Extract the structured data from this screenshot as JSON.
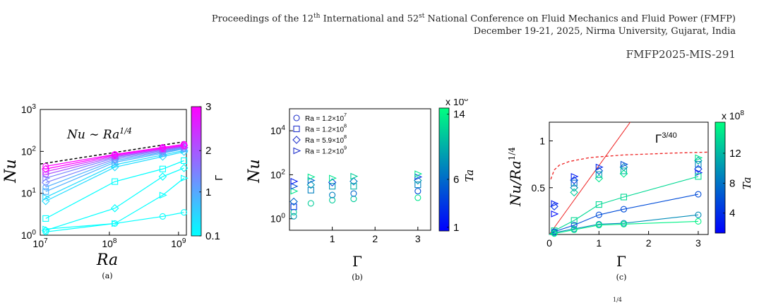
{
  "header": {
    "line1_pre": "Proceedings of the 12",
    "line1_sup1": "th",
    "line1_mid": " International and 52",
    "line1_sup2": "st",
    "line1_post": " National Conference on Fluid Mechanics and Fluid Power (FMFP)",
    "line2": "December 19-21, 2025, Nirma University, Gujarat, India",
    "paper_id": "FMFP2025-MIS-291"
  },
  "bottom_fragment": "1/4",
  "chart_data": [
    {
      "type": "line",
      "panel_label": "(a)",
      "xlabel": "Ra",
      "ylabel": "Nu",
      "xscale": "log",
      "yscale": "log",
      "xlim": [
        10000000.0,
        1300000000.0
      ],
      "ylim": [
        1,
        1000
      ],
      "xticks": [
        "10^7",
        "10^8",
        "10^9"
      ],
      "yticks": [
        "10^0",
        "10^1",
        "10^2",
        "10^3"
      ],
      "annotation": "Nu ~ Ra^1/4",
      "colorbar": {
        "label": "Γ",
        "ticks": [
          "0.1",
          "1",
          "2",
          "3"
        ],
        "low_color": "#00ffff",
        "high_color": "#ff00ff"
      },
      "x": [
        12000000,
        120000000,
        590000000,
        1200000000
      ],
      "reference_line": {
        "x": [
          10000000,
          1200000000
        ],
        "y": [
          50,
          170
        ]
      },
      "series": [
        {
          "gamma": 0.1,
          "marker": "circle",
          "values": [
            1.2,
            1.9,
            2.8,
            3.5
          ]
        },
        {
          "gamma": 0.1,
          "marker": "triangle",
          "values": [
            1.4,
            1.9,
            9.0,
            23
          ]
        },
        {
          "gamma": 0.1,
          "marker": "diamond",
          "values": [
            1.3,
            4.4,
            25,
            40
          ]
        },
        {
          "gamma": 0.1,
          "marker": "square",
          "values": [
            2.5,
            19,
            38,
            60
          ]
        },
        {
          "gamma": 0.5,
          "marker": "diamond",
          "values": [
            6.5,
            42,
            75,
            98
          ]
        },
        {
          "gamma": 0.5,
          "marker": "triangle",
          "values": [
            8,
            48,
            82,
            105
          ]
        },
        {
          "gamma": 1,
          "marker": "square",
          "values": [
            11,
            55,
            90,
            115
          ]
        },
        {
          "gamma": 1,
          "marker": "circle",
          "values": [
            14,
            60,
            95,
            118
          ]
        },
        {
          "gamma": 1.5,
          "marker": "diamond",
          "values": [
            18,
            65,
            100,
            122
          ]
        },
        {
          "gamma": 1.5,
          "marker": "triangle",
          "values": [
            23,
            70,
            105,
            125
          ]
        },
        {
          "gamma": 2,
          "marker": "circle",
          "values": [
            28,
            74,
            110,
            130
          ]
        },
        {
          "gamma": 2.5,
          "marker": "square",
          "values": [
            33,
            78,
            115,
            135
          ]
        },
        {
          "gamma": 3,
          "marker": "diamond",
          "values": [
            38,
            82,
            120,
            140
          ]
        },
        {
          "gamma": 3,
          "marker": "circle",
          "values": [
            44,
            85,
            125,
            148
          ]
        }
      ]
    },
    {
      "type": "scatter",
      "panel_label": "(b)",
      "xlabel": "Γ",
      "ylabel": "Nu",
      "yscale": "log",
      "xlim": [
        0,
        3.3
      ],
      "ylim": [
        0.3,
        100000
      ],
      "xticks": [
        "1",
        "2",
        "3"
      ],
      "yticks": [
        "10^0",
        "10^2",
        "10^4"
      ],
      "colorbar": {
        "label": "Ta",
        "multiplier": "x 10^8",
        "ticks": [
          "1",
          "6",
          "14"
        ],
        "low_color": "#0000ff",
        "high_color": "#00ff80"
      },
      "legend": [
        {
          "label": "Ra = 1.2×10^7",
          "marker": "circle"
        },
        {
          "label": "Ra = 1.2×10^8",
          "marker": "square"
        },
        {
          "label": "Ra = 5.9×10^8",
          "marker": "diamond"
        },
        {
          "label": "Ra = 1.2×10^9",
          "marker": "triangle"
        }
      ],
      "points": [
        {
          "x": 0.1,
          "y": 1.3,
          "marker": "circle",
          "t": 0.6
        },
        {
          "x": 0.1,
          "y": 2.0,
          "marker": "circle",
          "t": 0.8
        },
        {
          "x": 0.1,
          "y": 3.5,
          "marker": "square",
          "t": 0.2
        },
        {
          "x": 0.1,
          "y": 6,
          "marker": "diamond",
          "t": 0.4
        },
        {
          "x": 0.1,
          "y": 18,
          "marker": "triangle",
          "t": 0.9
        },
        {
          "x": 0.1,
          "y": 30,
          "marker": "triangle",
          "t": 0.3
        },
        {
          "x": 0.1,
          "y": 50,
          "marker": "triangle",
          "t": 0.1
        },
        {
          "x": 0.5,
          "y": 5,
          "marker": "circle",
          "t": 0.8
        },
        {
          "x": 0.5,
          "y": 20,
          "marker": "square",
          "t": 0.5
        },
        {
          "x": 0.5,
          "y": 35,
          "marker": "diamond",
          "t": 0.6
        },
        {
          "x": 0.5,
          "y": 55,
          "marker": "triangle",
          "t": 0.4
        },
        {
          "x": 0.5,
          "y": 80,
          "marker": "triangle",
          "t": 0.9
        },
        {
          "x": 1.0,
          "y": 7,
          "marker": "circle",
          "t": 0.8
        },
        {
          "x": 1.0,
          "y": 12,
          "marker": "circle",
          "t": 0.5
        },
        {
          "x": 1.0,
          "y": 30,
          "marker": "square",
          "t": 0.6
        },
        {
          "x": 1.0,
          "y": 45,
          "marker": "diamond",
          "t": 0.3
        },
        {
          "x": 1.0,
          "y": 70,
          "marker": "triangle",
          "t": 0.9
        },
        {
          "x": 1.5,
          "y": 8,
          "marker": "circle",
          "t": 0.8
        },
        {
          "x": 1.5,
          "y": 14,
          "marker": "circle",
          "t": 0.4
        },
        {
          "x": 1.5,
          "y": 30,
          "marker": "square",
          "t": 0.7
        },
        {
          "x": 1.5,
          "y": 50,
          "marker": "diamond",
          "t": 0.5
        },
        {
          "x": 1.5,
          "y": 85,
          "marker": "triangle",
          "t": 0.8
        },
        {
          "x": 3.0,
          "y": 9,
          "marker": "circle",
          "t": 0.9
        },
        {
          "x": 3.0,
          "y": 18,
          "marker": "circle",
          "t": 0.3
        },
        {
          "x": 3.0,
          "y": 35,
          "marker": "square",
          "t": 0.5
        },
        {
          "x": 3.0,
          "y": 55,
          "marker": "diamond",
          "t": 0.6
        },
        {
          "x": 3.0,
          "y": 80,
          "marker": "triangle",
          "t": 0.2
        },
        {
          "x": 3.0,
          "y": 110,
          "marker": "triangle",
          "t": 0.9
        }
      ]
    },
    {
      "type": "line",
      "panel_label": "(c)",
      "xlabel": "Γ",
      "ylabel": "Nu/Ra^1/4",
      "xlim": [
        0,
        3.2
      ],
      "ylim": [
        0,
        1.2
      ],
      "xticks": [
        "0",
        "1",
        "2",
        "3"
      ],
      "yticks": [
        "0.5",
        "1"
      ],
      "annotation": "Γ^3/40",
      "colorbar": {
        "label": "Ta",
        "multiplier": "x 10^8",
        "ticks": [
          "4",
          "8",
          "12"
        ],
        "low_color": "#0000ff",
        "high_color": "#00ff80"
      },
      "red_line": {
        "x": [
          0,
          1.63
        ],
        "y": [
          0,
          1.2
        ]
      },
      "red_curve_x": [
        0.03,
        0.1,
        0.2,
        0.4,
        0.6,
        0.8,
        1.0,
        1.5,
        2.0,
        2.5,
        3.2
      ],
      "red_curve_y": [
        0.59,
        0.69,
        0.74,
        0.78,
        0.8,
        0.82,
        0.83,
        0.85,
        0.86,
        0.87,
        0.88
      ],
      "series": [
        {
          "marker": "square",
          "t": 0.85,
          "x": [
            0.1,
            0.5,
            1.0,
            1.5,
            3.0
          ],
          "y": [
            0.04,
            0.15,
            0.32,
            0.4,
            0.62
          ]
        },
        {
          "marker": "circle",
          "t": 0.3,
          "x": [
            0.1,
            0.5,
            1.0,
            1.5,
            3.0
          ],
          "y": [
            0.03,
            0.1,
            0.21,
            0.27,
            0.43
          ]
        },
        {
          "marker": "circle",
          "t": 0.55,
          "x": [
            0.1,
            0.5,
            1.0,
            1.5,
            3.0
          ],
          "y": [
            0.02,
            0.06,
            0.11,
            0.12,
            0.21
          ]
        },
        {
          "marker": "circle",
          "t": 0.95,
          "x": [
            0.1,
            0.5,
            1.0,
            1.5,
            3.0
          ],
          "y": [
            0.01,
            0.05,
            0.1,
            0.11,
            0.14
          ]
        }
      ],
      "scatter_points": [
        {
          "x": 0.1,
          "y": 0.33,
          "marker": "triangle",
          "t": 0.1
        },
        {
          "x": 0.1,
          "y": 0.3,
          "marker": "diamond",
          "t": 0.2
        },
        {
          "x": 0.1,
          "y": 0.22,
          "marker": "triangle",
          "t": 0.05
        },
        {
          "x": 0.5,
          "y": 0.62,
          "marker": "triangle",
          "t": 0.1
        },
        {
          "x": 0.5,
          "y": 0.58,
          "marker": "diamond",
          "t": 0.2
        },
        {
          "x": 0.5,
          "y": 0.55,
          "marker": "square",
          "t": 0.4
        },
        {
          "x": 0.5,
          "y": 0.5,
          "marker": "diamond",
          "t": 0.6
        },
        {
          "x": 0.5,
          "y": 0.45,
          "marker": "diamond",
          "t": 0.8
        },
        {
          "x": 1.0,
          "y": 0.72,
          "marker": "triangle",
          "t": 0.15
        },
        {
          "x": 1.0,
          "y": 0.68,
          "marker": "diamond",
          "t": 0.3
        },
        {
          "x": 1.0,
          "y": 0.64,
          "marker": "square",
          "t": 0.6
        },
        {
          "x": 1.0,
          "y": 0.6,
          "marker": "diamond",
          "t": 0.9
        },
        {
          "x": 1.5,
          "y": 0.75,
          "marker": "triangle",
          "t": 0.3
        },
        {
          "x": 1.5,
          "y": 0.72,
          "marker": "diamond",
          "t": 0.5
        },
        {
          "x": 1.5,
          "y": 0.68,
          "marker": "square",
          "t": 0.7
        },
        {
          "x": 1.5,
          "y": 0.65,
          "marker": "diamond",
          "t": 0.9
        },
        {
          "x": 3.0,
          "y": 0.82,
          "marker": "triangle",
          "t": 0.9
        },
        {
          "x": 3.0,
          "y": 0.79,
          "marker": "diamond",
          "t": 0.7
        },
        {
          "x": 3.0,
          "y": 0.75,
          "marker": "square",
          "t": 0.5
        },
        {
          "x": 3.0,
          "y": 0.7,
          "marker": "diamond",
          "t": 0.2
        },
        {
          "x": 3.0,
          "y": 0.66,
          "marker": "triangle",
          "t": 0.1
        }
      ]
    }
  ]
}
